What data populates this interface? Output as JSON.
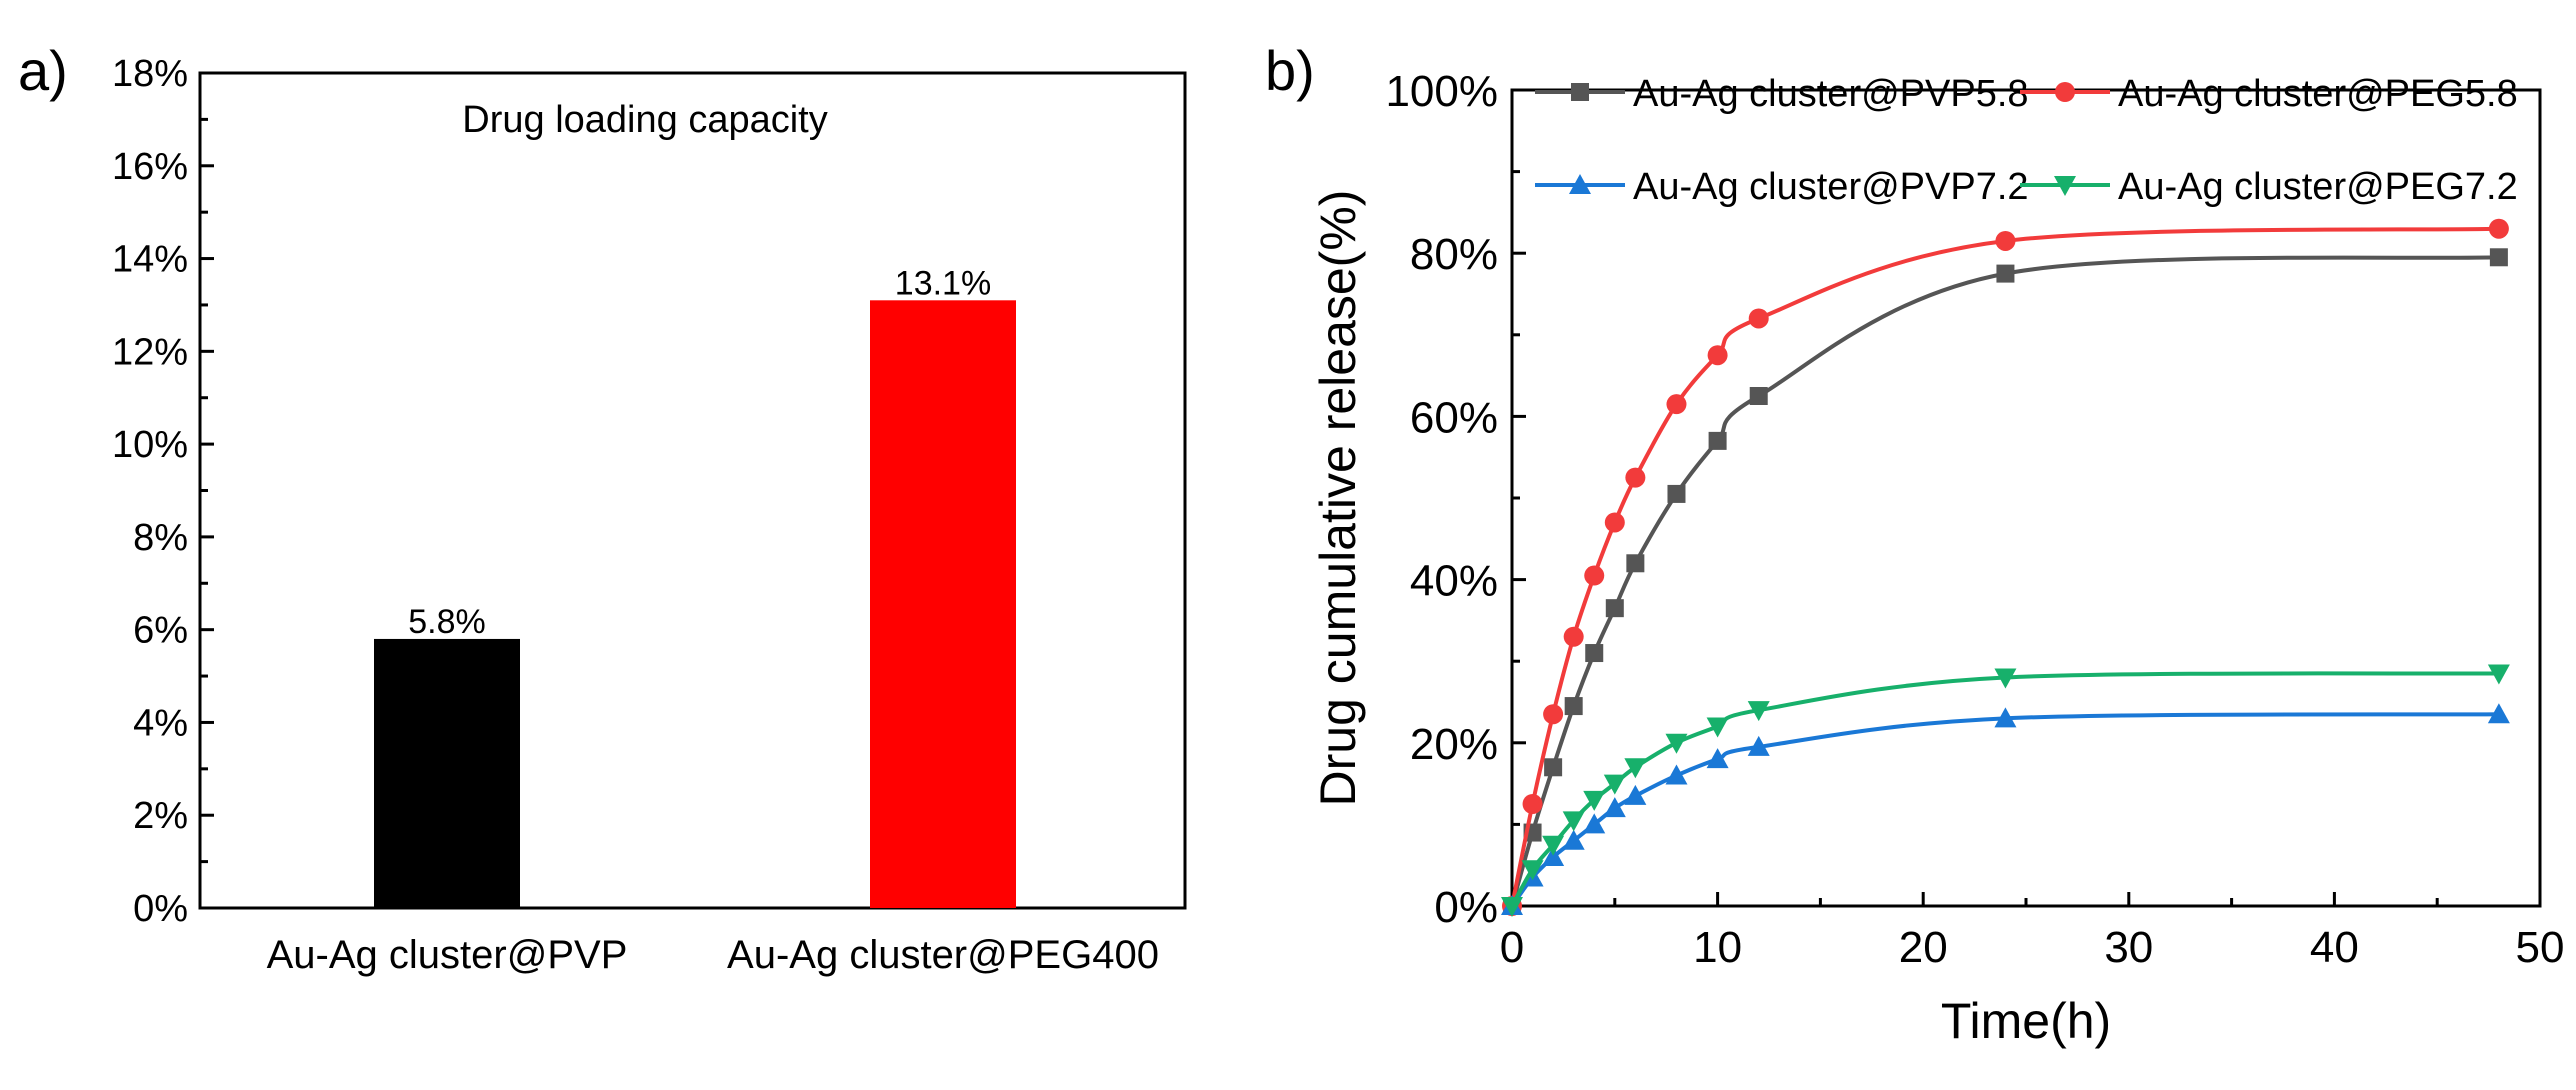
{
  "chart_data": [
    {
      "panel_label": "a)",
      "type": "bar",
      "title": "Drug loading capacity",
      "categories": [
        "Au-Ag cluster@PVP",
        "Au-Ag cluster@PEG400"
      ],
      "values": [
        5.8,
        13.1
      ],
      "data_labels": [
        "5.8%",
        "13.1%"
      ],
      "colors": [
        "#000000",
        "#ff0000"
      ],
      "ylim": [
        0,
        18
      ],
      "yticks": [
        0,
        2,
        4,
        6,
        8,
        10,
        12,
        14,
        16,
        18
      ],
      "ytick_labels": [
        "0%",
        "2%",
        "4%",
        "6%",
        "8%",
        "10%",
        "12%",
        "14%",
        "16%",
        "18%"
      ],
      "xlabel": "",
      "ylabel": ""
    },
    {
      "panel_label": "b)",
      "type": "line",
      "xlabel": "Time(h)",
      "ylabel": "Drug cumulative release(%)",
      "xlim": [
        0,
        50
      ],
      "ylim": [
        0,
        100
      ],
      "xticks": [
        0,
        10,
        20,
        30,
        40,
        50
      ],
      "xtick_labels": [
        "0",
        "10",
        "20",
        "30",
        "40",
        "50"
      ],
      "yticks": [
        0,
        20,
        40,
        60,
        80,
        100
      ],
      "ytick_labels": [
        "0%",
        "20%",
        "40%",
        "60%",
        "80%",
        "100%"
      ],
      "legend_position": "top",
      "series": [
        {
          "name": "Au-Ag cluster@PVP5.8",
          "color": "#555555",
          "marker": "square",
          "x": [
            0,
            1,
            2,
            3,
            4,
            5,
            6,
            8,
            10,
            12,
            24,
            48
          ],
          "y": [
            0,
            9,
            17,
            24.5,
            31,
            36.5,
            42,
            50.5,
            57,
            62.5,
            77.5,
            79.5
          ]
        },
        {
          "name": "Au-Ag cluster@PEG5.8",
          "color": "#f23b3b",
          "marker": "circle",
          "x": [
            0,
            1,
            2,
            3,
            4,
            5,
            6,
            8,
            10,
            12,
            24,
            48
          ],
          "y": [
            0,
            12.5,
            23.5,
            33,
            40.5,
            47,
            52.5,
            61.5,
            67.5,
            72,
            81.5,
            83
          ]
        },
        {
          "name": "Au-Ag cluster@PVP7.2",
          "color": "#1a78d6",
          "marker": "triangle-up",
          "x": [
            0,
            1,
            2,
            3,
            4,
            5,
            6,
            8,
            10,
            12,
            24,
            48
          ],
          "y": [
            0,
            3.5,
            6,
            8,
            10,
            12,
            13.5,
            16,
            18,
            19.5,
            23,
            23.5
          ]
        },
        {
          "name": "Au-Ag cluster@PEG7.2",
          "color": "#17b06b",
          "marker": "triangle-down",
          "x": [
            0,
            1,
            2,
            3,
            4,
            5,
            6,
            8,
            10,
            12,
            24,
            48
          ],
          "y": [
            0,
            4.5,
            7.5,
            10.5,
            13,
            15,
            17,
            20,
            22,
            24,
            28,
            28.5
          ]
        }
      ]
    }
  ]
}
